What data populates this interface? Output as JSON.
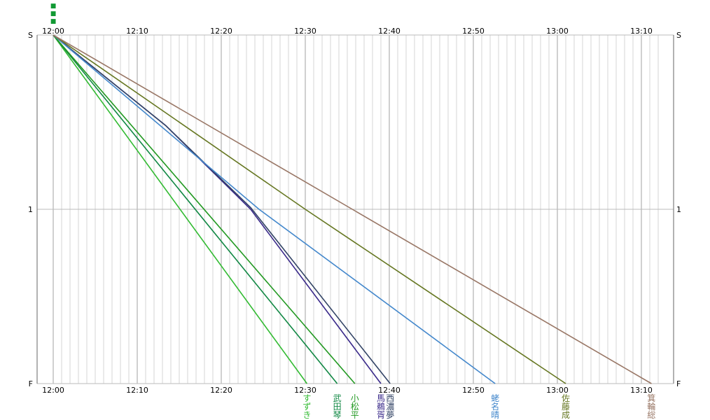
{
  "chart_data": {
    "type": "line",
    "title": "",
    "xlabel": "",
    "ylabel": "",
    "x_unit": "minutes after 12:00",
    "xlim": [
      0,
      72
    ],
    "ylim": [
      0,
      2
    ],
    "x_tick_labels": [
      "12:00",
      "12:10",
      "12:20",
      "12:30",
      "12:40",
      "12:50",
      "13:00",
      "13:10"
    ],
    "x_tick_values": [
      0,
      10,
      20,
      30,
      40,
      50,
      60,
      70
    ],
    "y_tick_labels_left": [
      "S",
      "1",
      "F"
    ],
    "y_tick_labels_right": [
      "S",
      "1",
      "F"
    ],
    "y_tick_values": [
      0,
      1,
      2
    ],
    "minor_grid_minutes": 1,
    "grid": true,
    "start_markers": [
      "■",
      "■",
      "■"
    ],
    "series": [
      {
        "name": "すずき",
        "color": "#33bb33",
        "x": [
          0,
          30.2
        ],
        "y": [
          0,
          2
        ]
      },
      {
        "name": "武田琴",
        "color": "#118844",
        "x": [
          0,
          33.8
        ],
        "y": [
          0,
          2
        ]
      },
      {
        "name": "小松平",
        "color": "#229922",
        "x": [
          0,
          35.9
        ],
        "y": [
          0,
          2
        ]
      },
      {
        "name": "馬鵜胥",
        "color": "#3a2a8a",
        "x": [
          0,
          13.4,
          23.5,
          39.0
        ],
        "y": [
          0,
          0.52,
          1.0,
          2
        ]
      },
      {
        "name": "西濃夢",
        "color": "#334466",
        "x": [
          0,
          13.4,
          23.5,
          40.1
        ],
        "y": [
          0,
          0.52,
          0.99,
          2
        ]
      },
      {
        "name": "蛯名晴",
        "color": "#4488cc",
        "x": [
          0,
          24.5,
          52.6
        ],
        "y": [
          0,
          1.0,
          2
        ]
      },
      {
        "name": "佐藤成",
        "color": "#667722",
        "x": [
          0,
          30.0,
          61.0
        ],
        "y": [
          0,
          1.0,
          2
        ]
      },
      {
        "name": "箕輪総",
        "color": "#997766",
        "x": [
          0,
          71.2
        ],
        "y": [
          0,
          2
        ]
      }
    ]
  }
}
